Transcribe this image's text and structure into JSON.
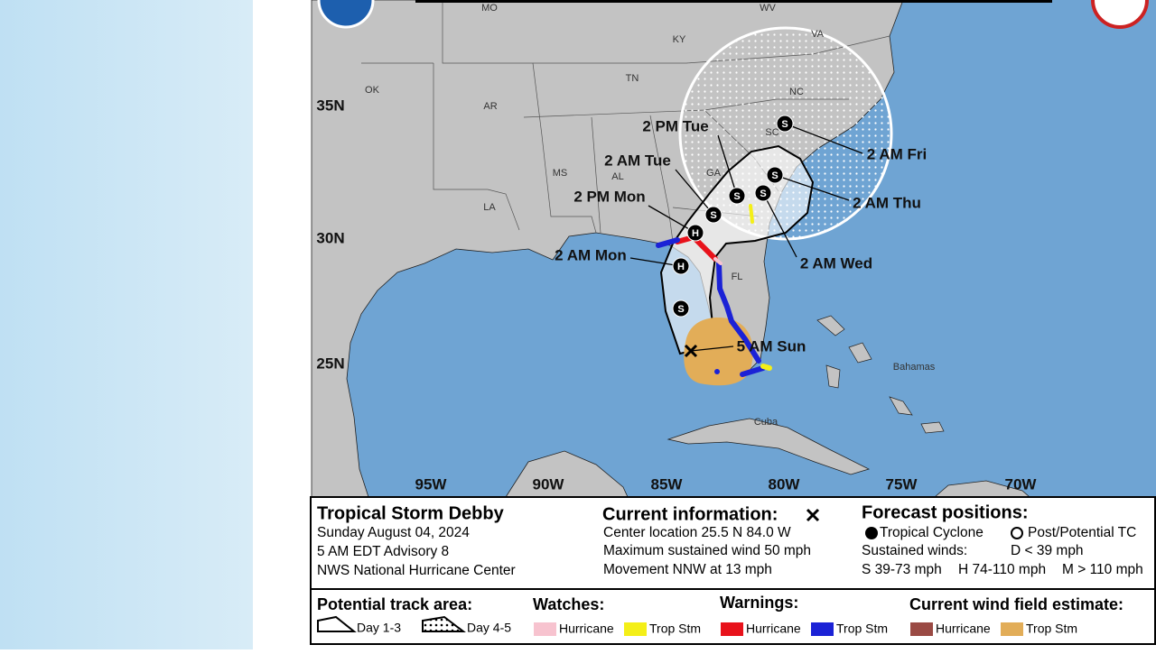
{
  "map": {
    "states": [
      "MO",
      "KY",
      "WV",
      "VA",
      "OK",
      "AR",
      "TN",
      "NC",
      "SC",
      "GA",
      "MS",
      "AL",
      "LA",
      "FL"
    ],
    "latitudes": [
      "35N",
      "30N",
      "25N"
    ],
    "longitudes": [
      "95W",
      "90W",
      "85W",
      "80W",
      "75W",
      "70W"
    ],
    "places": [
      "Bahamas",
      "Cuba"
    ],
    "current_position": "5 AM Sun",
    "forecast": [
      {
        "time": "2 AM Mon",
        "symbol": "H"
      },
      {
        "time": "2 PM Mon",
        "symbol": "H"
      },
      {
        "time": "2 AM Tue",
        "symbol": "S"
      },
      {
        "time": "2 PM Tue",
        "symbol": "S"
      },
      {
        "time": "2 AM Wed",
        "symbol": "S"
      },
      {
        "time": "2 AM Thu",
        "symbol": "S"
      },
      {
        "time": "2 AM Fri",
        "symbol": "S"
      },
      {
        "symbol": "S"
      }
    ]
  },
  "info": {
    "title": "Tropical Storm Debby",
    "date": "Sunday August 04, 2024",
    "advisory": "5 AM EDT Advisory 8",
    "source": "NWS National Hurricane Center",
    "current_heading": "Current information:",
    "center_location": "Center location 25.5 N 84.0 W",
    "max_wind": "Maximum sustained wind 50 mph",
    "movement": "Movement NNW at 13 mph",
    "forecast_heading": "Forecast positions:",
    "tropical_cyclone": "Tropical Cyclone",
    "post_potential": "Post/Potential TC",
    "sustained_winds": "Sustained winds:",
    "d_range": "D < 39 mph",
    "s_range": "S 39-73 mph",
    "h_range": "H 74-110 mph",
    "m_range": "M > 110 mph"
  },
  "legend": {
    "track_heading": "Potential track area:",
    "day_1_3": "Day 1-3",
    "day_4_5": "Day 4-5",
    "watches_heading": "Watches:",
    "watch_hurricane": "Hurricane",
    "watch_trop_stm": "Trop Stm",
    "warnings_heading": "Warnings:",
    "warning_hurricane": "Hurricane",
    "warning_trop_stm": "Trop Stm",
    "wind_heading": "Current wind field estimate:",
    "wind_hurricane": "Hurricane",
    "wind_trop_stm": "Trop Stm"
  }
}
